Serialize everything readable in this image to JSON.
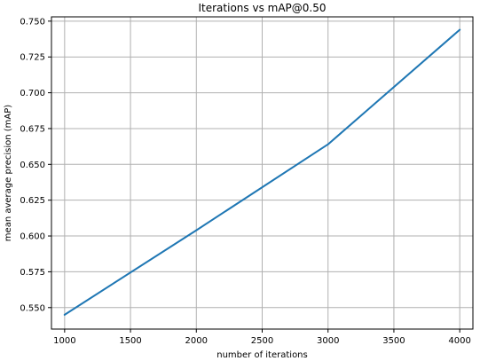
{
  "chart_data": {
    "type": "line",
    "title": "Iterations vs mAP@0.50",
    "xlabel": "number of iterations",
    "ylabel": "mean average precision (mAP)",
    "x": [
      1000,
      2000,
      3000,
      4000
    ],
    "series": [
      {
        "values": [
          0.545,
          0.604,
          0.664,
          0.744
        ],
        "color": "#1f77b4"
      }
    ],
    "xlim": [
      900,
      4100
    ],
    "ylim": [
      0.535,
      0.753
    ],
    "xticks": [
      1000,
      1500,
      2000,
      2500,
      3000,
      3500,
      4000
    ],
    "xtick_labels": [
      "1000",
      "1500",
      "2000",
      "2500",
      "3000",
      "3500",
      "4000"
    ],
    "yticks": [
      0.55,
      0.575,
      0.6,
      0.625,
      0.65,
      0.675,
      0.7,
      0.725,
      0.75
    ],
    "ytick_labels": [
      "0.550",
      "0.575",
      "0.600",
      "0.625",
      "0.650",
      "0.675",
      "0.700",
      "0.725",
      "0.750"
    ],
    "grid": true,
    "legend": "none",
    "colors": {
      "grid": "#b0b0b0",
      "axes": "#000000",
      "background": "#ffffff"
    }
  }
}
